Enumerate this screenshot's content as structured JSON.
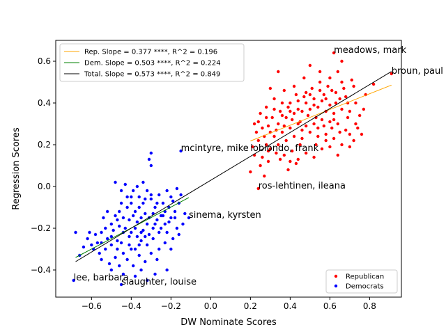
{
  "chart_data": {
    "type": "scatter",
    "xlabel": "DW Nominate Scores",
    "ylabel": "Regression Scores",
    "xlim": [
      -0.78,
      0.96
    ],
    "ylim": [
      -0.53,
      0.7
    ],
    "x_ticks": [
      -0.6,
      -0.4,
      -0.2,
      0.0,
      0.2,
      0.4,
      0.6,
      0.8
    ],
    "x_tick_labels": [
      "−0.6",
      "−0.4",
      "−0.2",
      "0.0",
      "0.2",
      "0.4",
      "0.6",
      "0.8"
    ],
    "y_ticks": [
      -0.4,
      -0.2,
      0.0,
      0.2,
      0.4,
      0.6
    ],
    "y_tick_labels": [
      "−0.4",
      "−0.2",
      "0.0",
      "0.2",
      "0.4",
      "0.6"
    ],
    "grid": false,
    "regression_lines": [
      {
        "label": "Rep. Slope = 0.377 ****, R^2 = 0.196",
        "color": "#ffa500",
        "slope": 0.377,
        "x_range": [
          0.2,
          0.91
        ],
        "y_start": 0.218
      },
      {
        "label": "Dem. Slope = 0.503 ****, R^2 = 0.224",
        "color": "#008000",
        "slope": 0.503,
        "x_range": [
          -0.68,
          -0.11
        ],
        "y_start": -0.34
      },
      {
        "label": "Total. Slope = 0.573 ****, R^2 = 0.849",
        "color": "#000000",
        "slope": 0.573,
        "x_range": [
          -0.68,
          0.91
        ],
        "y_start": -0.36
      }
    ],
    "line_legend_position": "upper-left",
    "scatter_legend": [
      {
        "name": "Republican",
        "color": "#ff0000"
      },
      {
        "name": "Democrats",
        "color": "#0000ff"
      }
    ],
    "scatter_legend_position": "lower-right",
    "series": [
      {
        "name": "Republican",
        "color": "#ff0000",
        "points": [
          [
            0.62,
            0.64
          ],
          [
            0.91,
            0.54
          ],
          [
            0.2,
            0.07
          ],
          [
            0.24,
            -0.01
          ],
          [
            0.53,
            0.2
          ],
          [
            0.35,
            0.13
          ],
          [
            0.3,
            0.47
          ],
          [
            0.37,
            0.46
          ],
          [
            0.42,
            0.48
          ],
          [
            0.47,
            0.52
          ],
          [
            0.5,
            0.58
          ],
          [
            0.55,
            0.55
          ],
          [
            0.6,
            0.52
          ],
          [
            0.64,
            0.55
          ],
          [
            0.66,
            0.6
          ],
          [
            0.72,
            0.48
          ],
          [
            0.75,
            0.34
          ],
          [
            0.82,
            0.49
          ],
          [
            0.73,
            0.4
          ],
          [
            0.78,
            0.44
          ],
          [
            0.68,
            0.43
          ],
          [
            0.63,
            0.45
          ],
          [
            0.58,
            0.42
          ],
          [
            0.55,
            0.46
          ],
          [
            0.52,
            0.42
          ],
          [
            0.48,
            0.45
          ],
          [
            0.44,
            0.41
          ],
          [
            0.4,
            0.4
          ],
          [
            0.36,
            0.4
          ],
          [
            0.32,
            0.42
          ],
          [
            0.28,
            0.38
          ],
          [
            0.25,
            0.35
          ],
          [
            0.22,
            0.3
          ],
          [
            0.26,
            0.28
          ],
          [
            0.3,
            0.26
          ],
          [
            0.34,
            0.3
          ],
          [
            0.38,
            0.33
          ],
          [
            0.42,
            0.35
          ],
          [
            0.46,
            0.36
          ],
          [
            0.5,
            0.37
          ],
          [
            0.54,
            0.38
          ],
          [
            0.58,
            0.36
          ],
          [
            0.62,
            0.35
          ],
          [
            0.66,
            0.37
          ],
          [
            0.7,
            0.36
          ],
          [
            0.74,
            0.28
          ],
          [
            0.72,
            0.22
          ],
          [
            0.68,
            0.27
          ],
          [
            0.64,
            0.3
          ],
          [
            0.6,
            0.31
          ],
          [
            0.56,
            0.32
          ],
          [
            0.52,
            0.3
          ],
          [
            0.48,
            0.29
          ],
          [
            0.44,
            0.3
          ],
          [
            0.4,
            0.28
          ],
          [
            0.36,
            0.26
          ],
          [
            0.32,
            0.24
          ],
          [
            0.28,
            0.2
          ],
          [
            0.24,
            0.22
          ],
          [
            0.22,
            0.15
          ],
          [
            0.26,
            0.14
          ],
          [
            0.3,
            0.18
          ],
          [
            0.34,
            0.2
          ],
          [
            0.38,
            0.22
          ],
          [
            0.42,
            0.24
          ],
          [
            0.46,
            0.23
          ],
          [
            0.5,
            0.26
          ],
          [
            0.54,
            0.28
          ],
          [
            0.58,
            0.25
          ],
          [
            0.62,
            0.23
          ],
          [
            0.66,
            0.2
          ],
          [
            0.7,
            0.25
          ],
          [
            0.45,
            0.2
          ],
          [
            0.41,
            0.17
          ],
          [
            0.37,
            0.15
          ],
          [
            0.33,
            0.16
          ],
          [
            0.29,
            0.12
          ],
          [
            0.25,
            0.1
          ],
          [
            0.4,
            0.12
          ],
          [
            0.44,
            0.13
          ],
          [
            0.48,
            0.16
          ],
          [
            0.52,
            0.14
          ],
          [
            0.56,
            0.18
          ],
          [
            0.6,
            0.19
          ],
          [
            0.64,
            0.15
          ],
          [
            0.31,
            0.33
          ],
          [
            0.35,
            0.36
          ],
          [
            0.39,
            0.38
          ],
          [
            0.43,
            0.44
          ],
          [
            0.47,
            0.43
          ],
          [
            0.51,
            0.47
          ],
          [
            0.55,
            0.5
          ],
          [
            0.59,
            0.48
          ],
          [
            0.63,
            0.4
          ],
          [
            0.67,
            0.47
          ],
          [
            0.71,
            0.51
          ],
          [
            0.69,
            0.33
          ],
          [
            0.65,
            0.26
          ],
          [
            0.61,
            0.28
          ],
          [
            0.57,
            0.29
          ],
          [
            0.53,
            0.33
          ],
          [
            0.49,
            0.34
          ],
          [
            0.45,
            0.31
          ],
          [
            0.41,
            0.32
          ],
          [
            0.37,
            0.29
          ],
          [
            0.33,
            0.27
          ],
          [
            0.29,
            0.29
          ],
          [
            0.27,
            0.24
          ],
          [
            0.23,
            0.26
          ],
          [
            0.21,
            0.19
          ],
          [
            0.27,
            0.05
          ],
          [
            0.43,
            0.11
          ],
          [
            0.39,
            0.08
          ],
          [
            0.46,
            0.27
          ],
          [
            0.5,
            0.44
          ],
          [
            0.54,
            0.24
          ],
          [
            0.58,
            0.22
          ],
          [
            0.62,
            0.32
          ],
          [
            0.66,
            0.5
          ],
          [
            0.6,
            0.39
          ],
          [
            0.56,
            0.41
          ],
          [
            0.52,
            0.39
          ],
          [
            0.48,
            0.4
          ],
          [
            0.44,
            0.37
          ],
          [
            0.4,
            0.36
          ],
          [
            0.36,
            0.34
          ],
          [
            0.32,
            0.37
          ],
          [
            0.28,
            0.33
          ],
          [
            0.24,
            0.31
          ],
          [
            0.57,
            0.44
          ],
          [
            0.61,
            0.46
          ],
          [
            0.65,
            0.42
          ],
          [
            0.69,
            0.4
          ],
          [
            0.73,
            0.3
          ],
          [
            0.77,
            0.37
          ],
          [
            0.76,
            0.25
          ],
          [
            0.7,
            0.19
          ],
          [
            0.34,
            0.55
          ],
          [
            0.29,
            0.17
          ]
        ]
      },
      {
        "name": "Democrats",
        "color": "#0000ff",
        "points": [
          [
            -0.69,
            -0.45
          ],
          [
            -0.66,
            -0.33
          ],
          [
            -0.68,
            -0.22
          ],
          [
            -0.45,
            -0.47
          ],
          [
            -0.15,
            0.17
          ],
          [
            -0.3,
            0.16
          ],
          [
            -0.11,
            -0.15
          ],
          [
            -0.22,
            -0.4
          ],
          [
            -0.13,
            -0.13
          ],
          [
            -0.48,
            0.02
          ],
          [
            -0.46,
            -0.38
          ],
          [
            -0.5,
            -0.4
          ],
          [
            -0.55,
            -0.35
          ],
          [
            -0.6,
            -0.28
          ],
          [
            -0.62,
            -0.25
          ],
          [
            -0.58,
            -0.23
          ],
          [
            -0.55,
            -0.22
          ],
          [
            -0.52,
            -0.25
          ],
          [
            -0.5,
            -0.18
          ],
          [
            -0.48,
            -0.14
          ],
          [
            -0.46,
            -0.12
          ],
          [
            -0.44,
            -0.15
          ],
          [
            -0.42,
            -0.1
          ],
          [
            -0.4,
            -0.08
          ],
          [
            -0.38,
            -0.12
          ],
          [
            -0.36,
            -0.05
          ],
          [
            -0.34,
            -0.08
          ],
          [
            -0.32,
            -0.02
          ],
          [
            -0.3,
            -0.06
          ],
          [
            -0.28,
            -0.1
          ],
          [
            -0.26,
            -0.04
          ],
          [
            -0.24,
            -0.08
          ],
          [
            -0.22,
            -0.02
          ],
          [
            -0.2,
            -0.05
          ],
          [
            -0.18,
            -0.12
          ],
          [
            -0.16,
            -0.08
          ],
          [
            -0.14,
            -0.18
          ],
          [
            -0.17,
            -0.2
          ],
          [
            -0.2,
            -0.15
          ],
          [
            -0.23,
            -0.18
          ],
          [
            -0.26,
            -0.22
          ],
          [
            -0.29,
            -0.2
          ],
          [
            -0.32,
            -0.18
          ],
          [
            -0.35,
            -0.22
          ],
          [
            -0.38,
            -0.2
          ],
          [
            -0.41,
            -0.24
          ],
          [
            -0.44,
            -0.22
          ],
          [
            -0.47,
            -0.26
          ],
          [
            -0.5,
            -0.28
          ],
          [
            -0.53,
            -0.3
          ],
          [
            -0.56,
            -0.32
          ],
          [
            -0.59,
            -0.3
          ],
          [
            -0.47,
            -0.3
          ],
          [
            -0.44,
            -0.32
          ],
          [
            -0.41,
            -0.28
          ],
          [
            -0.38,
            -0.3
          ],
          [
            -0.35,
            -0.26
          ],
          [
            -0.32,
            -0.28
          ],
          [
            -0.29,
            -0.25
          ],
          [
            -0.26,
            -0.3
          ],
          [
            -0.23,
            -0.27
          ],
          [
            -0.2,
            -0.3
          ],
          [
            -0.42,
            -0.35
          ],
          [
            -0.39,
            -0.38
          ],
          [
            -0.36,
            -0.33
          ],
          [
            -0.33,
            -0.36
          ],
          [
            -0.3,
            -0.32
          ],
          [
            -0.27,
            -0.35
          ],
          [
            -0.4,
            -0.05
          ],
          [
            -0.37,
            0.0
          ],
          [
            -0.34,
            0.02
          ],
          [
            -0.45,
            -0.02
          ],
          [
            -0.43,
            0.01
          ],
          [
            -0.41,
            -0.16
          ],
          [
            -0.39,
            -0.14
          ],
          [
            -0.37,
            -0.17
          ],
          [
            -0.35,
            -0.15
          ],
          [
            -0.33,
            -0.13
          ],
          [
            -0.31,
            -0.15
          ],
          [
            -0.29,
            -0.13
          ],
          [
            -0.27,
            -0.16
          ],
          [
            -0.25,
            -0.14
          ],
          [
            -0.23,
            -0.12
          ],
          [
            -0.21,
            -0.1
          ],
          [
            -0.19,
            -0.07
          ],
          [
            -0.15,
            -0.04
          ],
          [
            -0.17,
            -0.01
          ],
          [
            -0.3,
            0.1
          ],
          [
            -0.31,
            0.13
          ],
          [
            -0.52,
            -0.12
          ],
          [
            -0.54,
            -0.15
          ],
          [
            -0.57,
            -0.27
          ],
          [
            -0.61,
            -0.22
          ],
          [
            -0.64,
            -0.29
          ],
          [
            -0.49,
            -0.21
          ],
          [
            -0.46,
            -0.19
          ],
          [
            -0.43,
            -0.2
          ],
          [
            -0.4,
            -0.22
          ],
          [
            -0.37,
            -0.24
          ],
          [
            -0.34,
            -0.21
          ],
          [
            -0.31,
            -0.23
          ],
          [
            -0.28,
            -0.18
          ],
          [
            -0.25,
            -0.2
          ],
          [
            -0.22,
            -0.22
          ],
          [
            -0.19,
            -0.25
          ],
          [
            -0.16,
            -0.23
          ],
          [
            -0.48,
            -0.34
          ],
          [
            -0.51,
            -0.37
          ],
          [
            -0.44,
            -0.42
          ],
          [
            -0.38,
            -0.43
          ],
          [
            -0.35,
            -0.4
          ],
          [
            -0.32,
            -0.45
          ],
          [
            -0.28,
            -0.42
          ],
          [
            -0.53,
            -0.2
          ],
          [
            -0.5,
            -0.24
          ],
          [
            -0.47,
            -0.16
          ],
          [
            -0.45,
            -0.08
          ],
          [
            -0.42,
            -0.05
          ],
          [
            -0.39,
            -0.02
          ],
          [
            -0.36,
            -0.1
          ],
          [
            -0.33,
            -0.06
          ],
          [
            -0.3,
            -0.04
          ],
          [
            -0.27,
            -0.08
          ],
          [
            -0.24,
            -0.14
          ],
          [
            -0.21,
            -0.17
          ],
          [
            -0.18,
            -0.15
          ],
          [
            -0.33,
            -0.24
          ],
          [
            -0.36,
            -0.28
          ],
          [
            -0.4,
            -0.3
          ],
          [
            -0.45,
            -0.27
          ],
          [
            -0.55,
            -0.27
          ]
        ]
      }
    ],
    "annotations": [
      {
        "text": "meadows, mark",
        "x": 0.62,
        "y": 0.64
      },
      {
        "text": "broun, paul",
        "x": 0.91,
        "y": 0.54
      },
      {
        "text": "mcintyre, mike",
        "x": -0.15,
        "y": 0.17
      },
      {
        "text": "lobiondo, frank",
        "x": 0.2,
        "y": 0.17
      },
      {
        "text": "ros-lehtinen, ileana",
        "x": 0.24,
        "y": -0.01
      },
      {
        "text": "sinema, kyrsten",
        "x": -0.11,
        "y": -0.15
      },
      {
        "text": "lee, barbara",
        "x": -0.69,
        "y": -0.45
      },
      {
        "text": "slaughter, louise",
        "x": -0.45,
        "y": -0.47
      }
    ]
  }
}
